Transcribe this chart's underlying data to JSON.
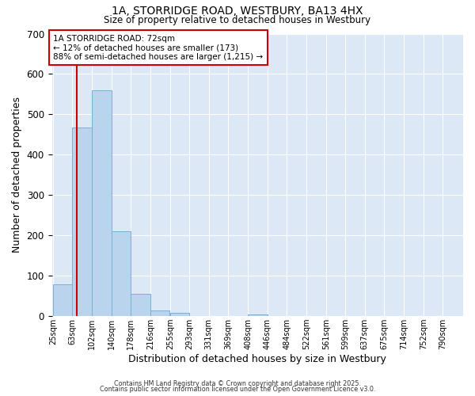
{
  "title_line1": "1A, STORRIDGE ROAD, WESTBURY, BA13 4HX",
  "title_line2": "Size of property relative to detached houses in Westbury",
  "xlabel": "Distribution of detached houses by size in Westbury",
  "ylabel": "Number of detached properties",
  "bar_edges": [
    25,
    63,
    102,
    140,
    178,
    216,
    255,
    293,
    331,
    369,
    408,
    446,
    484,
    522,
    561,
    599,
    637,
    675,
    714,
    752,
    790
  ],
  "bar_heights": [
    78,
    467,
    560,
    210,
    55,
    15,
    8,
    0,
    0,
    0,
    5,
    0,
    0,
    0,
    0,
    0,
    0,
    0,
    0,
    0,
    0
  ],
  "bar_color": "#bad4ed",
  "bar_edge_color": "#7aafd4",
  "property_line_x": 72,
  "property_line_color": "#cc0000",
  "ylim": [
    0,
    700
  ],
  "yticks": [
    0,
    100,
    200,
    300,
    400,
    500,
    600,
    700
  ],
  "annotation_lines": [
    "1A STORRIDGE ROAD: 72sqm",
    "← 12% of detached houses are smaller (173)",
    "88% of semi-detached houses are larger (1,215) →"
  ],
  "annotation_box_color": "#cc0000",
  "background_color": "#dce8f5",
  "grid_color": "#ffffff",
  "footer_line1": "Contains HM Land Registry data © Crown copyright and database right 2025.",
  "footer_line2": "Contains public sector information licensed under the Open Government Licence v3.0."
}
